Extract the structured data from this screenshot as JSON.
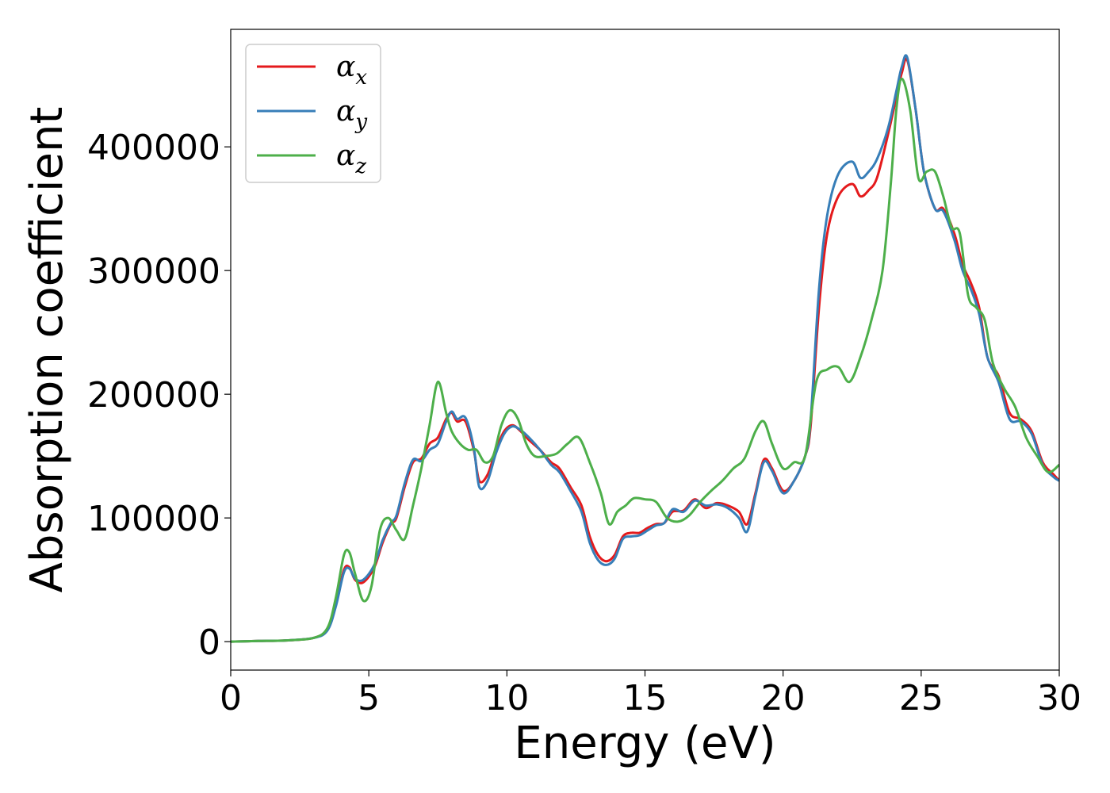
{
  "chart_data": {
    "type": "line",
    "xlabel": "Energy (eV)",
    "ylabel": "Absorption coefficient",
    "xlim": [
      0,
      30
    ],
    "ylim": [
      -23000,
      495000
    ],
    "xticks": [
      0,
      5,
      10,
      15,
      20,
      25,
      30
    ],
    "yticks": [
      0,
      100000,
      200000,
      300000,
      400000
    ],
    "grid": false,
    "legend_position": "top-left",
    "series": [
      {
        "name_base": "α",
        "name_sub": "x",
        "color": "#e41a1c",
        "x": [
          0,
          1,
          2,
          3,
          3.5,
          3.8,
          4.1,
          4.3,
          4.5,
          4.8,
          5.2,
          5.5,
          5.8,
          6.0,
          6.3,
          6.6,
          6.9,
          7.2,
          7.5,
          7.8,
          8.0,
          8.2,
          8.5,
          8.8,
          9.0,
          9.3,
          9.6,
          9.9,
          10.2,
          10.5,
          10.8,
          11.2,
          11.6,
          11.9,
          12.3,
          12.7,
          13.0,
          13.3,
          13.6,
          13.9,
          14.2,
          14.5,
          14.8,
          15.1,
          15.4,
          15.7,
          16.0,
          16.4,
          16.8,
          17.2,
          17.6,
          18.0,
          18.4,
          18.7,
          19.0,
          19.3,
          19.6,
          20.0,
          20.4,
          20.8,
          21.0,
          21.3,
          21.6,
          22.0,
          22.5,
          22.8,
          23.1,
          23.4,
          23.8,
          24.1,
          24.3,
          24.5,
          24.8,
          25.1,
          25.5,
          25.8,
          26.2,
          26.5,
          26.8,
          27.1,
          27.4,
          27.8,
          28.2,
          28.6,
          29.0,
          29.4,
          29.8,
          30.0
        ],
        "y": [
          0,
          500,
          1000,
          3000,
          10000,
          30000,
          58000,
          60000,
          50000,
          48000,
          60000,
          80000,
          95000,
          100000,
          125000,
          145000,
          148000,
          160000,
          165000,
          180000,
          185000,
          178000,
          178000,
          155000,
          130000,
          135000,
          155000,
          170000,
          175000,
          170000,
          163000,
          155000,
          145000,
          140000,
          125000,
          110000,
          85000,
          70000,
          65000,
          70000,
          85000,
          88000,
          88000,
          92000,
          95000,
          96000,
          105000,
          106000,
          115000,
          108000,
          112000,
          110000,
          105000,
          95000,
          120000,
          147000,
          140000,
          122000,
          130000,
          150000,
          175000,
          270000,
          330000,
          360000,
          370000,
          360000,
          365000,
          375000,
          410000,
          440000,
          460000,
          470000,
          430000,
          380000,
          350000,
          350000,
          330000,
          305000,
          290000,
          270000,
          230000,
          215000,
          185000,
          180000,
          170000,
          145000,
          135000,
          130000
        ]
      },
      {
        "name_base": "α",
        "name_sub": "y",
        "color": "#377eb8",
        "x": [
          0,
          1,
          2,
          3,
          3.5,
          3.8,
          4.1,
          4.3,
          4.5,
          4.8,
          5.2,
          5.5,
          5.8,
          6.0,
          6.3,
          6.6,
          6.9,
          7.2,
          7.5,
          7.8,
          8.0,
          8.2,
          8.5,
          8.8,
          9.0,
          9.3,
          9.6,
          9.9,
          10.2,
          10.5,
          10.8,
          11.2,
          11.6,
          11.9,
          12.3,
          12.7,
          13.0,
          13.3,
          13.6,
          13.9,
          14.2,
          14.5,
          14.8,
          15.1,
          15.4,
          15.7,
          16.0,
          16.4,
          16.8,
          17.2,
          17.6,
          18.0,
          18.4,
          18.7,
          19.0,
          19.3,
          19.6,
          20.0,
          20.4,
          20.8,
          21.0,
          21.3,
          21.6,
          22.0,
          22.5,
          22.8,
          23.1,
          23.4,
          23.8,
          24.1,
          24.3,
          24.5,
          24.8,
          25.1,
          25.5,
          25.8,
          26.2,
          26.5,
          26.8,
          27.1,
          27.4,
          27.8,
          28.2,
          28.6,
          29.0,
          29.4,
          29.8,
          30.0
        ],
        "y": [
          0,
          500,
          1000,
          3000,
          9000,
          28000,
          56000,
          59000,
          51000,
          50000,
          62000,
          82000,
          96000,
          102000,
          128000,
          147000,
          146000,
          155000,
          160000,
          178000,
          186000,
          180000,
          181000,
          157000,
          125000,
          130000,
          152000,
          168000,
          174000,
          171000,
          165000,
          155000,
          143000,
          137000,
          122000,
          105000,
          80000,
          66000,
          62000,
          67000,
          83000,
          85000,
          86000,
          90000,
          94000,
          96000,
          107000,
          105000,
          114000,
          110000,
          111000,
          108000,
          100000,
          89000,
          118000,
          145000,
          138000,
          120000,
          130000,
          150000,
          180000,
          285000,
          345000,
          378000,
          388000,
          375000,
          380000,
          390000,
          415000,
          445000,
          465000,
          472000,
          430000,
          380000,
          350000,
          348000,
          325000,
          300000,
          285000,
          265000,
          230000,
          210000,
          180000,
          178000,
          168000,
          143000,
          133000,
          130000
        ]
      },
      {
        "name_base": "α",
        "name_sub": "z",
        "color": "#4daf4a",
        "x": [
          0,
          1,
          2,
          3,
          3.5,
          3.8,
          4.1,
          4.3,
          4.5,
          4.8,
          5.1,
          5.4,
          5.7,
          6.0,
          6.3,
          6.6,
          6.9,
          7.2,
          7.5,
          7.8,
          8.0,
          8.3,
          8.6,
          8.9,
          9.2,
          9.5,
          9.8,
          10.1,
          10.4,
          10.7,
          11.0,
          11.4,
          11.8,
          12.2,
          12.6,
          13.0,
          13.4,
          13.7,
          14.0,
          14.3,
          14.6,
          15.0,
          15.4,
          15.8,
          16.2,
          16.6,
          17.0,
          17.4,
          17.8,
          18.2,
          18.6,
          19.0,
          19.3,
          19.6,
          20.0,
          20.4,
          20.8,
          21.2,
          21.6,
          22.0,
          22.4,
          22.8,
          23.2,
          23.6,
          23.9,
          24.1,
          24.3,
          24.6,
          24.9,
          25.2,
          25.5,
          25.8,
          26.1,
          26.4,
          26.7,
          27.0,
          27.3,
          27.6,
          28.0,
          28.4,
          28.8,
          29.2,
          29.6,
          30.0
        ],
        "y": [
          0,
          500,
          1000,
          3000,
          11000,
          35000,
          70000,
          72000,
          55000,
          33000,
          45000,
          90000,
          100000,
          90000,
          83000,
          110000,
          140000,
          175000,
          210000,
          185000,
          170000,
          160000,
          155000,
          155000,
          145000,
          150000,
          175000,
          187000,
          180000,
          160000,
          150000,
          150000,
          152000,
          160000,
          165000,
          145000,
          120000,
          95000,
          105000,
          110000,
          116000,
          115000,
          113000,
          100000,
          97000,
          102000,
          113000,
          122000,
          130000,
          140000,
          148000,
          170000,
          178000,
          160000,
          140000,
          145000,
          150000,
          210000,
          220000,
          222000,
          210000,
          230000,
          260000,
          300000,
          370000,
          430000,
          455000,
          430000,
          375000,
          380000,
          380000,
          360000,
          335000,
          330000,
          280000,
          270000,
          260000,
          225000,
          205000,
          190000,
          165000,
          150000,
          137000,
          143000
        ]
      }
    ]
  }
}
